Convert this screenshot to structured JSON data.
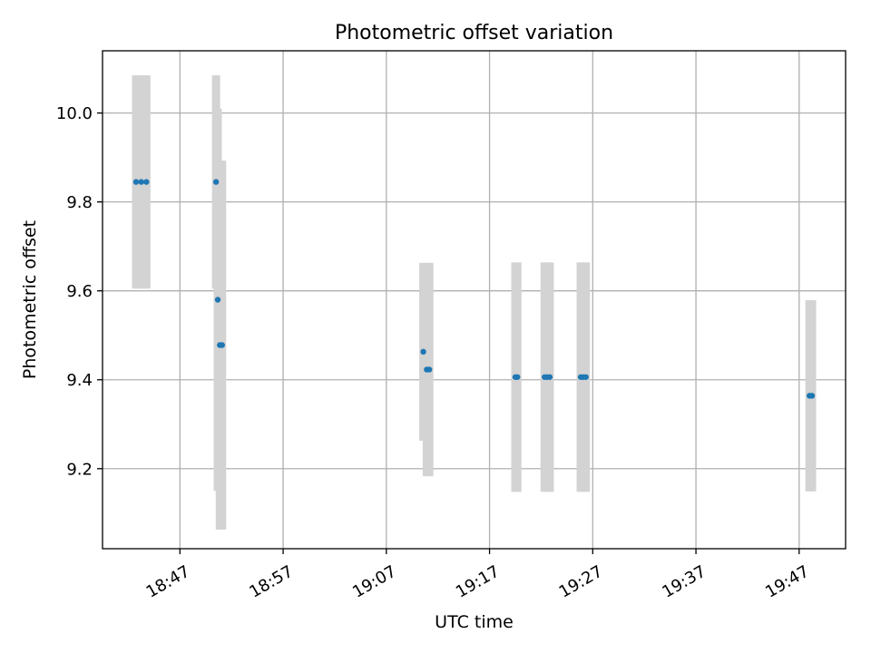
{
  "chart_data": {
    "type": "scatter",
    "title": "Photometric offset variation",
    "xlabel": "UTC time",
    "ylabel": "Photometric offset",
    "grid": true,
    "x_ticks": [
      "18:47",
      "18:57",
      "19:07",
      "19:17",
      "19:27",
      "19:37",
      "19:47"
    ],
    "y_ticks": [
      "9.2",
      "9.4",
      "9.6",
      "9.8",
      "10.0"
    ],
    "xlim": [
      "18:39:30",
      "19:51:30"
    ],
    "ylim": [
      9.02,
      10.14
    ],
    "error_bar_color": "#d3d3d3",
    "point_color": "#1f77b4",
    "points": [
      {
        "t": "18:42:45",
        "y": 9.845,
        "err": 0.24
      },
      {
        "t": "18:43:15",
        "y": 9.845,
        "err": 0.24
      },
      {
        "t": "18:43:45",
        "y": 9.845,
        "err": 0.24
      },
      {
        "t": "18:50:30",
        "y": 9.845,
        "err": 0.24
      },
      {
        "t": "18:50:40",
        "y": 9.58,
        "err": 0.43
      },
      {
        "t": "18:50:52",
        "y": 9.478,
        "err": 0.415
      },
      {
        "t": "18:51:05",
        "y": 9.478,
        "err": 0.415
      },
      {
        "t": "19:10:35",
        "y": 9.463,
        "err": 0.2
      },
      {
        "t": "19:10:55",
        "y": 9.423,
        "err": 0.24
      },
      {
        "t": "19:11:10",
        "y": 9.423,
        "err": 0.24
      },
      {
        "t": "19:19:30",
        "y": 9.406,
        "err": 0.258
      },
      {
        "t": "19:19:42",
        "y": 9.406,
        "err": 0.258
      },
      {
        "t": "19:22:20",
        "y": 9.406,
        "err": 0.258
      },
      {
        "t": "19:22:35",
        "y": 9.406,
        "err": 0.258
      },
      {
        "t": "19:22:50",
        "y": 9.406,
        "err": 0.258
      },
      {
        "t": "19:25:50",
        "y": 9.406,
        "err": 0.258
      },
      {
        "t": "19:26:05",
        "y": 9.406,
        "err": 0.258
      },
      {
        "t": "19:26:20",
        "y": 9.406,
        "err": 0.258
      },
      {
        "t": "19:48:00",
        "y": 9.364,
        "err": 0.215
      },
      {
        "t": "19:48:15",
        "y": 9.364,
        "err": 0.215
      }
    ]
  }
}
